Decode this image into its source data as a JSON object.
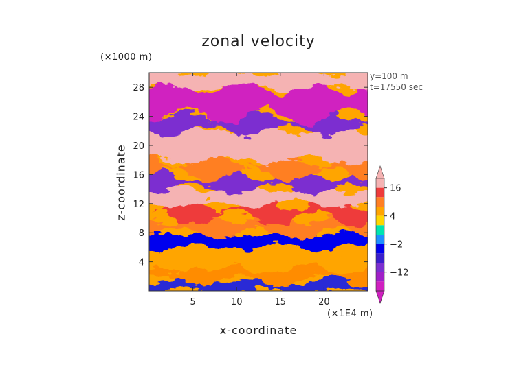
{
  "chart_data": {
    "type": "heatmap",
    "title": "zonal velocity",
    "xlabel": "x-coordinate",
    "ylabel": "z-coordinate",
    "x_unit": "(×1E4 m)",
    "y_unit": "(×1000 m)",
    "annotations": [
      "y=100 m",
      "t=17550 sec"
    ],
    "xlim": [
      0,
      25
    ],
    "ylim": [
      0,
      30
    ],
    "x_ticks": [
      5,
      10,
      15,
      20
    ],
    "y_ticks": [
      4,
      8,
      12,
      16,
      20,
      24,
      28
    ],
    "grid": false,
    "colorbar": {
      "placement": "right",
      "tick_labels": [
        "16",
        "4",
        "−2",
        "−12"
      ],
      "tick_values": [
        16,
        4,
        -2,
        -12
      ],
      "levels": [
        {
          "label": "",
          "color": "#f5b3b3"
        },
        {
          "label": "16",
          "color": "#ee3b3b"
        },
        {
          "label": "",
          "color": "#ff7f24"
        },
        {
          "label": "",
          "color": "#ffa500"
        },
        {
          "label": "4",
          "color": "#ffd700"
        },
        {
          "label": "",
          "color": "#00e5b0"
        },
        {
          "label": "",
          "color": "#1e90ff"
        },
        {
          "label": "−2",
          "color": "#0000ee"
        },
        {
          "label": "",
          "color": "#3a1fcc"
        },
        {
          "label": "",
          "color": "#7b2fd0"
        },
        {
          "label": "−12",
          "color": "#a020c8"
        },
        {
          "label": "",
          "color": "#d020c0"
        }
      ]
    },
    "layers": [
      {
        "z": [
          0,
          1.5
        ],
        "approx_u": -6,
        "color": "#2b2bd6"
      },
      {
        "z": [
          1.5,
          3.5
        ],
        "approx_u": 5,
        "color": "#ff8c00"
      },
      {
        "z": [
          3.5,
          6
        ],
        "approx_u": 3,
        "color": "#ffa500"
      },
      {
        "z": [
          6,
          8
        ],
        "approx_u": -4,
        "color": "#0000ee"
      },
      {
        "z": [
          8,
          10
        ],
        "approx_u": 8,
        "color": "#ff7f24"
      },
      {
        "z": [
          10,
          12
        ],
        "approx_u": 14,
        "color": "#ee3b3b"
      },
      {
        "z": [
          12,
          14
        ],
        "approx_u": 18,
        "color": "#f5b3b3"
      },
      {
        "z": [
          14,
          16
        ],
        "approx_u": -8,
        "color": "#7b2fd0"
      },
      {
        "z": [
          16,
          18
        ],
        "approx_u": 10,
        "color": "#ff7f24"
      },
      {
        "z": [
          18,
          22
        ],
        "approx_u": 18,
        "color": "#f5b3b3"
      },
      {
        "z": [
          22,
          24
        ],
        "approx_u": -10,
        "color": "#7b2fd0"
      },
      {
        "z": [
          24,
          28
        ],
        "approx_u": -14,
        "color": "#d020c0"
      },
      {
        "z": [
          28,
          30
        ],
        "approx_u": 16,
        "color": "#f5b3b3"
      }
    ]
  }
}
